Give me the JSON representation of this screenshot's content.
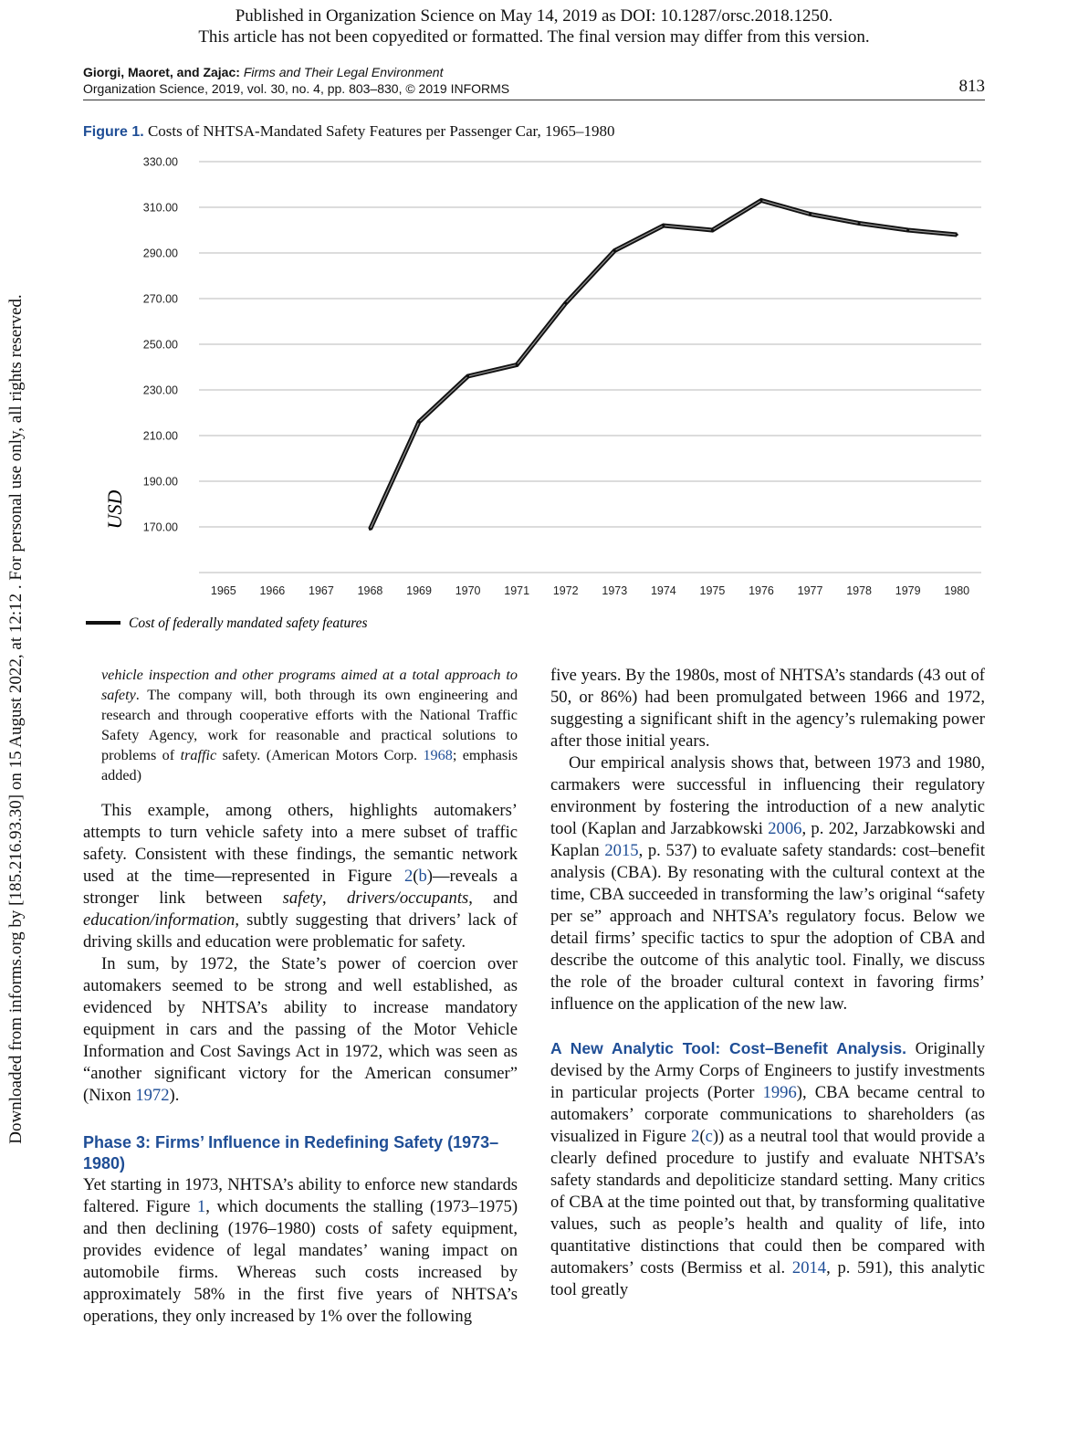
{
  "notice": {
    "line1": "Published in Organization Science on May 14, 2019 as DOI: 10.1287/orsc.2018.1250.",
    "line2": "This article has not been copyedited or formatted. The final version may differ from this version."
  },
  "side_note": "Downloaded from informs.org by [185.216.93.30] on 15 August 2022, at 12:12 . For personal use only, all rights reserved.",
  "running_head": {
    "authors": "Giorgi, Maoret, and Zajac:",
    "title": "Firms and Their Legal Environment",
    "journal": "Organization Science, 2019, vol. 30, no. 4, pp. 803–830, © 2019 INFORMS",
    "page": "813"
  },
  "figure": {
    "label": "Figure 1.",
    "caption": "Costs of NHTSA-Mandated Safety Features per Passenger Car, 1965–1980"
  },
  "chart_data": {
    "type": "line",
    "title": "",
    "ylabel": "USD",
    "xlabel": "",
    "ylim": [
      150,
      330
    ],
    "yticks": [
      "170.00",
      "190.00",
      "210.00",
      "230.00",
      "250.00",
      "270.00",
      "290.00",
      "310.00",
      "330.00"
    ],
    "categories": [
      "1965",
      "1966",
      "1967",
      "1968",
      "1969",
      "1970",
      "1971",
      "1972",
      "1973",
      "1974",
      "1975",
      "1976",
      "1977",
      "1978",
      "1979",
      "1980"
    ],
    "grid": true,
    "legend": "bottom-left",
    "series": [
      {
        "name": "Cost of federally mandated safety features",
        "x": [
          "1968",
          "1969",
          "1970",
          "1971",
          "1972",
          "1973",
          "1974",
          "1975",
          "1976",
          "1977",
          "1978",
          "1979",
          "1980"
        ],
        "values": [
          169,
          216,
          236,
          241,
          268,
          291,
          302,
          300,
          313,
          307,
          303,
          300,
          298
        ]
      }
    ],
    "colors": {
      "line": "#111111",
      "grid": "#c8c8c8"
    }
  },
  "left_column": {
    "quote": {
      "pre": "vehicle inspection and other programs aimed at a total approach to safety",
      "mid": ". The company will, both through its own engineering and research and through cooperative efforts with the National Traffic Safety Agency, work for reasonable and practical solutions to problems of ",
      "em": "traffic",
      "post": " safety. (American Motors Corp. ",
      "ref": "1968",
      "end": "; emphasis added)"
    },
    "p1": {
      "a": "This example, among others, highlights automakers’ attempts to turn vehicle safety into a mere subset of traffic safety. Consistent with these findings, the semantic network used at the time—represented in Figure ",
      "ref1": "2",
      "paren_open": "(",
      "ref2": "b",
      "b": ")—reveals a stronger link between ",
      "em1": "safety",
      "c": ", ",
      "em2": "drivers/occupants",
      "d": ", and ",
      "em3": "education/information",
      "e": ", subtly suggesting that drivers’ lack of driving skills and education were problematic for safety."
    },
    "p2": {
      "a": "In sum, by 1972, the State’s power of coercion over automakers seemed to be strong and well established, as evidenced by NHTSA’s ability to increase mandatory equipment in cars and the passing of the Motor Vehicle Information and Cost Savings Act in 1972, which was seen as “another significant victory for the American consumer” (Nixon ",
      "ref": "1972",
      "b": ")."
    },
    "heading": "Phase 3: Firms’ Influence in Redefining Safety (1973–1980)",
    "p3": {
      "a": "Yet starting in 1973, NHTSA’s ability to enforce new standards faltered. Figure ",
      "ref": "1",
      "b": ", which documents the stalling (1973–1975) and then declining (1976–1980) costs of safety equipment, provides evidence of legal mandates’ waning impact on automobile firms. Whereas such costs increased by approximately 58% in the first five years of NHTSA’s operations, they only increased by 1% over the following"
    }
  },
  "right_column": {
    "p1": "five years. By the 1980s, most of NHTSA’s standards (43 out of 50, or 86%) had been promulgated between 1966 and 1972, suggesting a significant shift in the agency’s rulemaking power after those initial years.",
    "p2": {
      "a": "Our empirical analysis shows that, between 1973 and 1980, carmakers were successful in influencing their regulatory environment by fostering the introduction of a new analytic tool (Kaplan and Jarzabkowski ",
      "ref1": "2006",
      "b": ", p. 202, Jarzabkowski and Kaplan ",
      "ref2": "2015",
      "c": ", p. 537) to evaluate safety standards: cost–benefit analysis (CBA). By resonating with the cultural context at the time, CBA succeeded in transforming the law’s original “safety per se” approach and NHTSA’s regulatory focus. Below we detail firms’ specific tactics to spur the adoption of CBA and describe the outcome of this analytic tool. Finally, we discuss the role of the broader cultural context in favoring firms’ influence on the application of the new law."
    },
    "p3": {
      "heading": "A New Analytic Tool: Cost–Benefit Analysis.",
      "a": " Originally devised by the Army Corps of Engineers to justify investments in particular projects (Porter ",
      "ref1": "1996",
      "b": "), CBA became central to automakers’ corporate communications to shareholders (as visualized in Figure ",
      "ref2": "2",
      "paren_open": "(",
      "ref3": "c",
      "c": ")) as a neutral tool that would provide a clearly defined procedure to justify and evaluate NHTSA’s safety standards and depoliticize standard setting. Many critics of CBA at the time pointed out that, by transforming qualitative values, such as people’s health and quality of life, into quantitative distinctions that could then be compared with automakers’ costs (Bermiss et al. ",
      "ref4": "2014",
      "d": ", p. 591), this analytic tool greatly"
    }
  }
}
